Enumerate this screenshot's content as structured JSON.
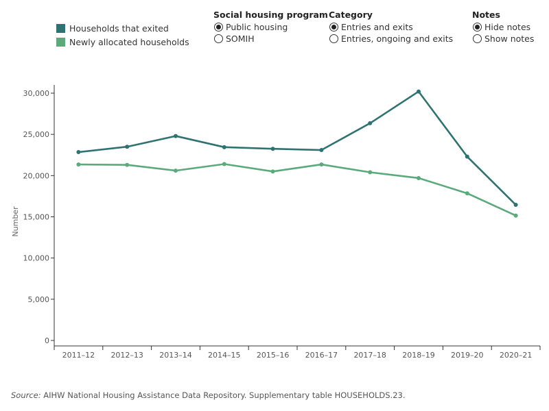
{
  "legend": {
    "items": [
      {
        "label": "Households that exited",
        "color": "#2e7272"
      },
      {
        "label": "Newly allocated households",
        "color": "#5aaa7c"
      }
    ]
  },
  "controls": {
    "program": {
      "title": "Social housing program",
      "options": [
        "Public housing",
        "SOMIH"
      ],
      "selected": 0
    },
    "category": {
      "title": "Category",
      "options": [
        "Entries and exits",
        "Entries, ongoing and exits"
      ],
      "selected": 0
    },
    "notes": {
      "title": "Notes",
      "options": [
        "Hide notes",
        "Show notes"
      ],
      "selected": 0
    }
  },
  "source": {
    "prefix": "Source:",
    "text": " AIHW National Housing Assistance Data Repository. Supplementary table HOUSEHOLDS.23."
  },
  "chart_data": {
    "type": "line",
    "categories": [
      "2011–12",
      "2012–13",
      "2013–14",
      "2014–15",
      "2015–16",
      "2016–17",
      "2017–18",
      "2018–19",
      "2019–20",
      "2020–21"
    ],
    "series": [
      {
        "name": "Households that exited",
        "color": "#2e7272",
        "values": [
          22850,
          23500,
          24800,
          23450,
          23250,
          23100,
          26350,
          30200,
          22300,
          16450
        ]
      },
      {
        "name": "Newly allocated households",
        "color": "#5aaa7c",
        "values": [
          21350,
          21300,
          20600,
          21400,
          20500,
          21350,
          20400,
          19700,
          17850,
          15150
        ]
      }
    ],
    "ylabel": "Number",
    "xlabel": "",
    "ylim": [
      0,
      30000
    ],
    "yticks": [
      0,
      5000,
      10000,
      15000,
      20000,
      25000,
      30000
    ],
    "ytick_labels": [
      "0",
      "5,000",
      "10,000",
      "15,000",
      "20,000",
      "25,000",
      "30,000"
    ],
    "grid": false
  }
}
